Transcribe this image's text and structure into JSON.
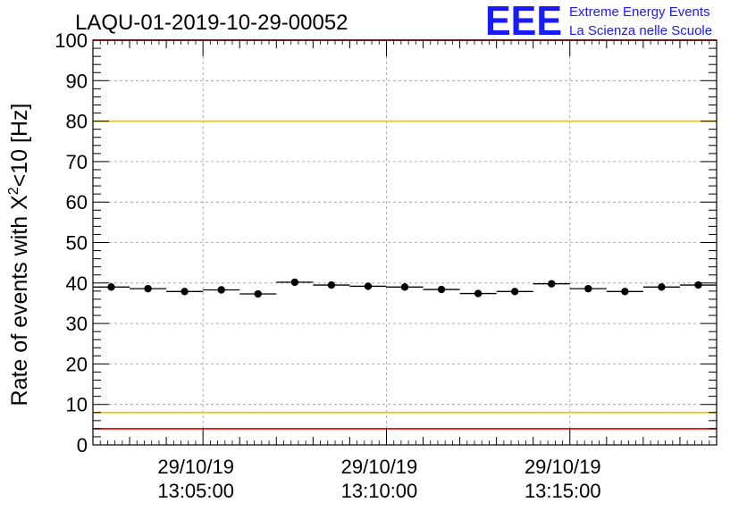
{
  "chart_data": {
    "type": "scatter",
    "title": "LAQU-01-2019-10-29-00052",
    "xlabel": "",
    "ylabel_prefix": "Rate of events with X",
    "ylabel_sup": "2",
    "ylabel_suffix": "<10 [Hz]",
    "ylim": [
      0,
      100
    ],
    "y_ticks": [
      0,
      10,
      20,
      30,
      40,
      50,
      60,
      70,
      80,
      90,
      100
    ],
    "y_tick_labels": [
      "0",
      "10",
      "20",
      "30",
      "40",
      "50",
      "60",
      "70",
      "80",
      "90",
      "100"
    ],
    "x_range_seconds": [
      0,
      1020
    ],
    "x_tick_seconds": [
      180,
      480,
      780
    ],
    "x_tick_dates": [
      "29/10/19",
      "29/10/19",
      "29/10/19"
    ],
    "x_tick_times": [
      "13:05:00",
      "13:10:00",
      "13:15:00"
    ],
    "bin_width_seconds": 60,
    "grid": true,
    "series": [
      {
        "name": "rate",
        "x_seconds": [
          30,
          90,
          150,
          210,
          270,
          330,
          390,
          450,
          510,
          570,
          630,
          690,
          750,
          810,
          870,
          930,
          990
        ],
        "values": [
          39.0,
          38.6,
          37.9,
          38.3,
          37.3,
          40.2,
          39.5,
          39.2,
          39.0,
          38.4,
          37.4,
          37.9,
          39.8,
          38.6,
          37.9,
          39.0,
          39.5
        ]
      }
    ],
    "reference_lines": [
      {
        "name": "upper-limit",
        "value": 100,
        "color": "#ff0000"
      },
      {
        "name": "upper-warning",
        "value": 80,
        "color": "#f2c400"
      },
      {
        "name": "lower-warning",
        "value": 8,
        "color": "#f2c400"
      },
      {
        "name": "lower-limit",
        "value": 4,
        "color": "#ff0000"
      }
    ]
  },
  "logo": {
    "mark": "EEE",
    "line1": "Extreme Energy Events",
    "line2": "La Scienza nelle Scuole",
    "color": "#1a1aff"
  }
}
